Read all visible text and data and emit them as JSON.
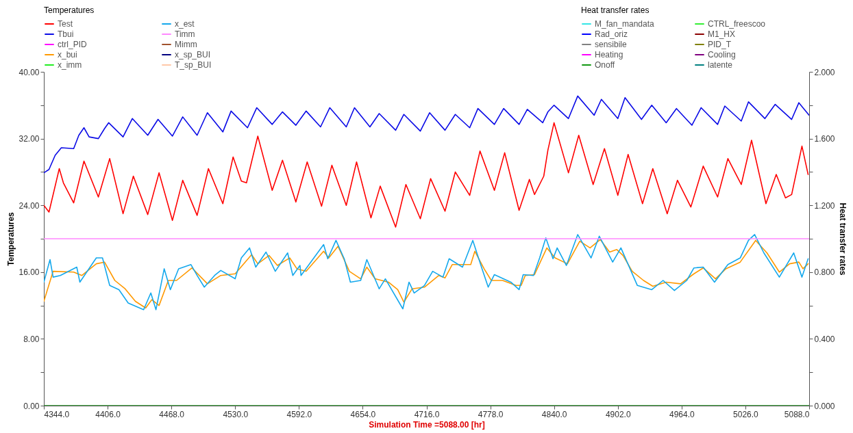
{
  "chart_data": {
    "type": "line",
    "xlabel": "Simulation Time =5088.00 [hr]",
    "ylabel": "Temperatures",
    "y2label": "Heat transfer rates",
    "xlim": [
      4344,
      5088
    ],
    "xticks": [
      {
        "value": 4344,
        "label": "4344.0"
      },
      {
        "value": 4406,
        "label": "4406.0"
      },
      {
        "value": 4468,
        "label": "4468.0"
      },
      {
        "value": 4530,
        "label": "4530.0"
      },
      {
        "value": 4592,
        "label": "4592.0"
      },
      {
        "value": 4654,
        "label": "4654.0"
      },
      {
        "value": 4716,
        "label": "4716.0"
      },
      {
        "value": 4778,
        "label": "4778.0"
      },
      {
        "value": 4840,
        "label": "4840.0"
      },
      {
        "value": 4902,
        "label": "4902.0"
      },
      {
        "value": 4964,
        "label": "4964.0"
      },
      {
        "value": 5026,
        "label": "5026.0"
      },
      {
        "value": 5088,
        "label": "5088.0"
      }
    ],
    "ylim": [
      0,
      40
    ],
    "yticks": [
      {
        "value": 0,
        "label": "0.00"
      },
      {
        "value": 4,
        "label": null
      },
      {
        "value": 8,
        "label": "8.00"
      },
      {
        "value": 12,
        "label": null
      },
      {
        "value": 16,
        "label": "16.00"
      },
      {
        "value": 20,
        "label": null
      },
      {
        "value": 24,
        "label": "24.00"
      },
      {
        "value": 28,
        "label": null
      },
      {
        "value": 32,
        "label": "32.00"
      },
      {
        "value": 36,
        "label": null
      },
      {
        "value": 40,
        "label": "40.00"
      }
    ],
    "y2lim": [
      0,
      2
    ],
    "y2ticks": [
      {
        "value": 0,
        "label": "0.000"
      },
      {
        "value": 0.2,
        "label": null
      },
      {
        "value": 0.4,
        "label": "0.400"
      },
      {
        "value": 0.6,
        "label": null
      },
      {
        "value": 0.8,
        "label": "0.800"
      },
      {
        "value": 1.0,
        "label": null
      },
      {
        "value": 1.2,
        "label": "1.200"
      },
      {
        "value": 1.4,
        "label": null
      },
      {
        "value": 1.6,
        "label": "1.600"
      },
      {
        "value": 1.8,
        "label": null
      },
      {
        "value": 2.0,
        "label": "2.000"
      }
    ],
    "legend": "top",
    "series": [
      {
        "name": "Test",
        "color": "#ff0000",
        "x": [
          4344,
          4349,
          4359,
          4363,
          4373,
          4383,
          4397,
          4408,
          4421,
          4431,
          4445,
          4456,
          4469,
          4479,
          4493,
          4504,
          4518,
          4528,
          4536,
          4541,
          4552,
          4566,
          4576,
          4589,
          4600,
          4614,
          4624,
          4638,
          4648,
          4662,
          4671,
          4686,
          4696,
          4710,
          4720,
          4734,
          4744,
          4758,
          4768,
          4782,
          4792,
          4806,
          4816,
          4821,
          4830,
          4834,
          4840,
          4854,
          4864,
          4878,
          4889,
          4902,
          4912,
          4926,
          4936,
          4950,
          4960,
          4973,
          4985,
          4999,
          5009,
          5022,
          5032,
          5046,
          5056,
          5065,
          5071,
          5081,
          5087
        ],
        "values": [
          24.0,
          23.2,
          28.4,
          26.7,
          24.3,
          29.3,
          25.0,
          29.6,
          23.0,
          27.5,
          22.9,
          27.9,
          22.2,
          27.0,
          22.8,
          28.4,
          24.2,
          29.8,
          26.9,
          26.7,
          32.3,
          25.8,
          29.4,
          24.4,
          29.2,
          23.9,
          28.8,
          24.0,
          29.2,
          22.5,
          26.3,
          21.4,
          26.5,
          22.4,
          27.2,
          23.3,
          28.0,
          25.2,
          30.5,
          25.8,
          30.3,
          23.4,
          27.1,
          25.3,
          27.5,
          30.6,
          33.9,
          27.9,
          32.4,
          26.5,
          30.8,
          25.2,
          30.1,
          24.2,
          28.4,
          23.0,
          27.0,
          23.8,
          28.7,
          25.0,
          29.6,
          26.5,
          31.8,
          24.2,
          27.7,
          24.9,
          25.3,
          31.1,
          27.7
        ]
      },
      {
        "name": "Tbui",
        "color": "#0a0ae6",
        "x": [
          4344,
          4349,
          4355,
          4361,
          4373,
          4378,
          4383,
          4388,
          4397,
          4403,
          4407,
          4421,
          4430,
          4445,
          4455,
          4469,
          4479,
          4493,
          4503,
          4518,
          4526,
          4542,
          4551,
          4566,
          4576,
          4589,
          4599,
          4613,
          4622,
          4638,
          4646,
          4661,
          4670,
          4686,
          4694,
          4710,
          4719,
          4734,
          4744,
          4758,
          4766,
          4782,
          4791,
          4806,
          4814,
          4829,
          4834,
          4840,
          4854,
          4863,
          4879,
          4886,
          4902,
          4909,
          4925,
          4935,
          4949,
          4959,
          4974,
          4983,
          4999,
          5006,
          5022,
          5029,
          5045,
          5055,
          5071,
          5078,
          5088
        ],
        "values": [
          27.9,
          28.3,
          30.0,
          30.9,
          30.8,
          32.4,
          33.3,
          32.2,
          32.0,
          33.2,
          33.9,
          32.2,
          34.4,
          32.4,
          34.3,
          32.3,
          34.6,
          32.4,
          35.1,
          32.8,
          35.3,
          33.3,
          35.7,
          33.7,
          35.2,
          33.6,
          35.3,
          33.4,
          35.7,
          33.4,
          35.7,
          33.4,
          35.0,
          33.0,
          34.9,
          32.9,
          35.1,
          33.0,
          34.9,
          33.3,
          35.6,
          33.7,
          35.6,
          33.7,
          35.5,
          33.9,
          35.2,
          36.0,
          34.4,
          37.1,
          34.8,
          36.7,
          34.4,
          36.9,
          34.3,
          36.0,
          33.9,
          35.6,
          33.6,
          35.7,
          33.7,
          35.9,
          34.1,
          36.4,
          34.4,
          36.1,
          34.3,
          36.3,
          34.8
        ]
      },
      {
        "name": "ctrl_PID",
        "color": "#ff00ff"
      },
      {
        "name": "x_bui",
        "color": "#ff9900",
        "x": [
          4344,
          4353,
          4373,
          4381,
          4395,
          4403,
          4413,
          4423,
          4433,
          4443,
          4449,
          4456,
          4465,
          4473,
          4488,
          4503,
          4516,
          4530,
          4546,
          4552,
          4563,
          4571,
          4583,
          4590,
          4599,
          4616,
          4621,
          4630,
          4641,
          4652,
          4658,
          4666,
          4679,
          4688,
          4694,
          4702,
          4714,
          4728,
          4734,
          4741,
          4759,
          4763,
          4772,
          4779,
          4790,
          4803,
          4808,
          4812,
          4821,
          4833,
          4841,
          4853,
          4865,
          4875,
          4885,
          4894,
          4901,
          4907,
          4916,
          4927,
          4936,
          4949,
          4963,
          4976,
          4985,
          4997,
          5007,
          5021,
          5036,
          5047,
          5059,
          5069,
          5078,
          5082,
          5087
        ],
        "values": [
          12.5,
          16.1,
          16.0,
          15.6,
          17.0,
          17.2,
          15.0,
          14.0,
          12.5,
          11.7,
          12.7,
          12.0,
          15.0,
          15.0,
          16.5,
          14.6,
          15.6,
          15.8,
          18.1,
          17.0,
          18.0,
          16.8,
          17.7,
          16.4,
          16.1,
          18.5,
          17.7,
          19.1,
          16.1,
          15.2,
          16.6,
          15.2,
          14.8,
          13.9,
          12.4,
          14.0,
          14.2,
          15.6,
          15.3,
          16.9,
          16.9,
          18.5,
          16.4,
          15.0,
          15.0,
          14.4,
          14.4,
          15.6,
          15.7,
          18.9,
          17.7,
          17.0,
          19.7,
          18.9,
          19.9,
          18.4,
          18.7,
          18.0,
          16.1,
          15.0,
          14.3,
          14.8,
          14.6,
          15.8,
          16.5,
          15.2,
          16.4,
          17.2,
          19.8,
          18.3,
          16.0,
          17.0,
          17.2,
          16.4,
          17.0
        ]
      },
      {
        "name": "x_imm",
        "color": "#22ee22"
      },
      {
        "name": "x_est",
        "color": "#14a8ec",
        "x": [
          4344,
          4350,
          4353,
          4360,
          4376,
          4379,
          4395,
          4401,
          4408,
          4417,
          4426,
          4441,
          4448,
          4453,
          4461,
          4467,
          4475,
          4487,
          4493,
          4500,
          4510,
          4516,
          4530,
          4536,
          4544,
          4550,
          4560,
          4569,
          4581,
          4586,
          4593,
          4594,
          4616,
          4620,
          4628,
          4636,
          4642,
          4652,
          4658,
          4670,
          4676,
          4693,
          4699,
          4704,
          4714,
          4722,
          4732,
          4738,
          4751,
          4761,
          4770,
          4776,
          4782,
          4798,
          4806,
          4810,
          4820,
          4826,
          4832,
          4839,
          4843,
          4852,
          4863,
          4876,
          4884,
          4897,
          4905,
          4921,
          4935,
          4946,
          4957,
          4969,
          4976,
          4985,
          4996,
          5009,
          5021,
          5029,
          5035,
          5044,
          5059,
          5073,
          5081,
          5087
        ],
        "values": [
          14.8,
          17.5,
          15.4,
          15.6,
          16.6,
          14.8,
          17.7,
          17.7,
          14.4,
          13.9,
          12.3,
          11.5,
          13.5,
          11.5,
          16.4,
          13.9,
          16.4,
          16.9,
          15.6,
          14.2,
          15.6,
          16.2,
          15.2,
          17.7,
          18.9,
          16.6,
          18.4,
          16.1,
          18.3,
          15.6,
          16.8,
          15.6,
          19.3,
          17.6,
          19.8,
          17.6,
          14.8,
          15.0,
          17.5,
          14.0,
          15.2,
          11.6,
          14.8,
          13.5,
          14.4,
          16.1,
          15.4,
          17.6,
          16.6,
          19.8,
          16.4,
          14.2,
          15.7,
          14.8,
          13.9,
          15.7,
          15.6,
          17.7,
          20.1,
          17.6,
          18.9,
          16.8,
          20.5,
          17.7,
          20.3,
          17.2,
          18.9,
          14.4,
          13.9,
          15.0,
          13.8,
          15.0,
          16.5,
          16.6,
          14.8,
          16.9,
          17.7,
          19.8,
          20.5,
          18.3,
          15.4,
          18.3,
          15.4,
          17.6
        ]
      },
      {
        "name": "Timm",
        "color": "#ff88ff",
        "x": [
          4344,
          5088
        ],
        "values": [
          20,
          20
        ]
      },
      {
        "name": "Mimm",
        "color": "#a0522d"
      },
      {
        "name": "x_sp_BUI",
        "color": "#000080"
      },
      {
        "name": "T_sp_BUI",
        "color": "#ffc8a8"
      },
      {
        "name": "M_fan_mandata",
        "color": "#33e6e6",
        "axis": "y2"
      },
      {
        "name": "Rad_oriz",
        "color": "#0000ff",
        "axis": "y2"
      },
      {
        "name": "sensibile",
        "color": "#808080",
        "axis": "y2"
      },
      {
        "name": "Heating",
        "color": "#ff00ff",
        "axis": "y2"
      },
      {
        "name": "Onoff",
        "color": "#119911",
        "axis": "y2",
        "x": [
          4344,
          5088
        ],
        "values": [
          0,
          0
        ]
      },
      {
        "name": "CTRL_freescoo",
        "color": "#33ee33",
        "axis": "y2"
      },
      {
        "name": "M1_HX",
        "color": "#8b0000",
        "axis": "y2"
      },
      {
        "name": "PID_T",
        "color": "#808000",
        "axis": "y2"
      },
      {
        "name": "Cooling",
        "color": "#800080",
        "axis": "y2"
      },
      {
        "name": "latente",
        "color": "#008080",
        "axis": "y2"
      }
    ]
  }
}
